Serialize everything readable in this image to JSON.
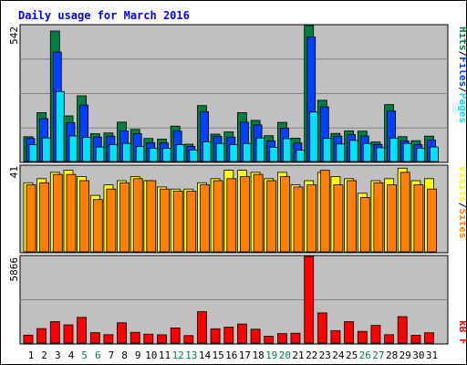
{
  "title": "Daily usage for March 2016",
  "legend": {
    "pages": "Pages",
    "files": "Files",
    "hits": "Hits",
    "sep": "/",
    "sites": "Sites",
    "visits": "Visits",
    "kbf": "kB F"
  },
  "colors": {
    "background": "#c0c0c0",
    "hits": "#008040",
    "files": "#0040ff",
    "pages": "#00e0ff",
    "visits": "#ffff00",
    "sites": "#ff8000",
    "kbf": "#ff0000",
    "title": "#0000ff",
    "weekend": "#008040",
    "weekday": "#000000"
  },
  "chart_data": [
    {
      "type": "bar",
      "panel": "hits-files-pages",
      "ymax_label": "542",
      "ylim": [
        0,
        542
      ],
      "categories": [
        "1",
        "2",
        "3",
        "4",
        "5",
        "6",
        "7",
        "8",
        "9",
        "10",
        "11",
        "12",
        "13",
        "14",
        "15",
        "16",
        "17",
        "18",
        "19",
        "20",
        "21",
        "22",
        "23",
        "24",
        "25",
        "26",
        "27",
        "28",
        "29",
        "30",
        "31"
      ],
      "series": [
        {
          "name": "Hits",
          "values": [
            99,
            195,
            520,
            182,
            262,
            111,
            114,
            157,
            128,
            92,
            89,
            141,
            69,
            223,
            109,
            118,
            195,
            164,
            103,
            156,
            93,
            542,
            244,
            112,
            122,
            121,
            78,
            227,
            99,
            83,
            101
          ]
        },
        {
          "name": "Files",
          "values": [
            92,
            171,
            436,
            155,
            225,
            98,
            101,
            122,
            111,
            75,
            74,
            121,
            60,
            199,
            100,
            97,
            157,
            146,
            82,
            133,
            74,
            496,
            218,
            101,
            107,
            102,
            68,
            201,
            82,
            67,
            86
          ]
        },
        {
          "name": "Pages",
          "values": [
            67,
            94,
            279,
            102,
            96,
            58,
            67,
            72,
            60,
            53,
            53,
            67,
            46,
            78,
            72,
            67,
            72,
            94,
            57,
            91,
            45,
            197,
            92,
            70,
            84,
            72,
            55,
            93,
            72,
            53,
            58
          ]
        }
      ]
    },
    {
      "type": "bar",
      "panel": "visits-sites",
      "ymax_label": "41",
      "ylim": [
        0,
        41
      ],
      "categories": [
        "1",
        "2",
        "3",
        "4",
        "5",
        "6",
        "7",
        "8",
        "9",
        "10",
        "11",
        "12",
        "13",
        "14",
        "15",
        "16",
        "17",
        "18",
        "19",
        "20",
        "21",
        "22",
        "23",
        "24",
        "25",
        "26",
        "27",
        "28",
        "29",
        "30",
        "31"
      ],
      "series": [
        {
          "name": "Visits",
          "values": [
            33,
            35,
            38,
            39,
            36,
            27,
            32,
            34,
            36,
            34,
            31,
            30,
            30,
            33,
            35,
            39,
            39,
            38,
            35,
            38,
            32,
            34,
            38,
            36,
            35,
            28,
            34,
            35,
            40,
            34,
            35
          ]
        },
        {
          "name": "Sites",
          "values": [
            32,
            33,
            37,
            37,
            34,
            25,
            30,
            33,
            35,
            34,
            30,
            29,
            29,
            32,
            34,
            35,
            36,
            37,
            34,
            36,
            31,
            32,
            39,
            32,
            34,
            26,
            33,
            32,
            38,
            32,
            30
          ]
        }
      ]
    },
    {
      "type": "bar",
      "panel": "kbytes",
      "ymax_label": "5866",
      "ylim": [
        0,
        5866
      ],
      "categories": [
        "1",
        "2",
        "3",
        "4",
        "5",
        "6",
        "7",
        "8",
        "9",
        "10",
        "11",
        "12",
        "13",
        "14",
        "15",
        "16",
        "17",
        "18",
        "19",
        "20",
        "21",
        "22",
        "23",
        "24",
        "25",
        "26",
        "27",
        "28",
        "29",
        "30",
        "31"
      ],
      "series": [
        {
          "name": "kB F",
          "values": [
            537,
            980,
            1450,
            1236,
            1740,
            702,
            569,
            1379,
            728,
            604,
            561,
            1023,
            506,
            2123,
            971,
            1079,
            1291,
            937,
            462,
            644,
            665,
            5866,
            2041,
            846,
            1452,
            790,
            1197,
            567,
            1793,
            525,
            697
          ]
        }
      ]
    }
  ],
  "weekend_days": [
    "5",
    "6",
    "12",
    "13",
    "19",
    "20",
    "26",
    "27"
  ]
}
